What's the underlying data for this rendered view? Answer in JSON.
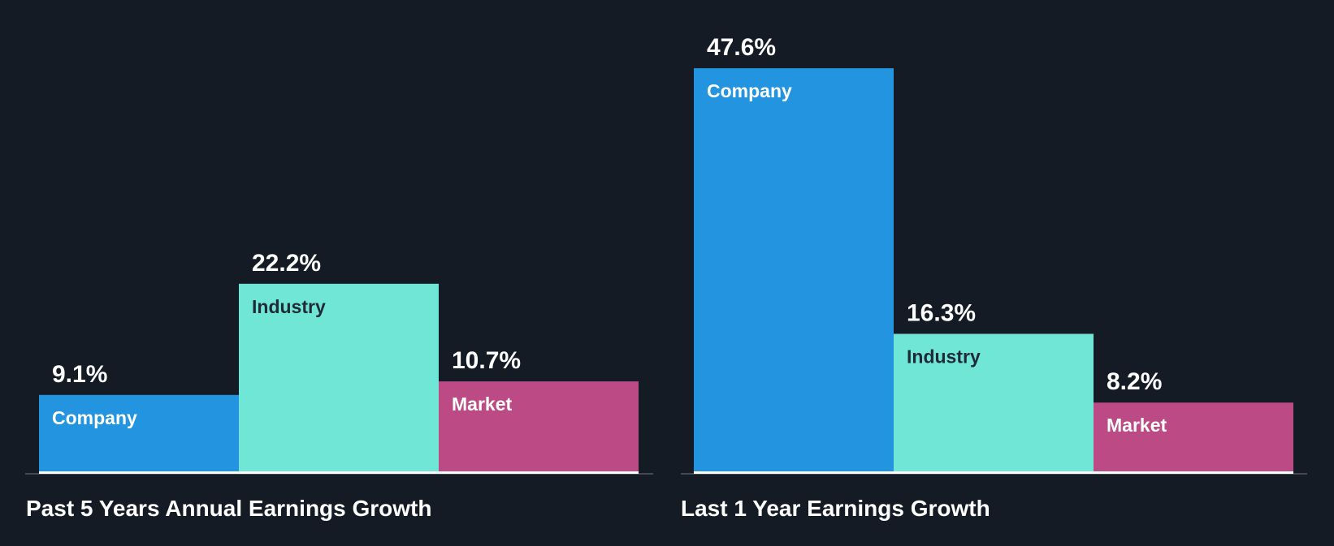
{
  "colors": {
    "background": "#151b24",
    "company": "#2394df",
    "industry": "#70e7d6",
    "market": "#bb4a85",
    "axis": "#444a52",
    "baseline": "#ffffff",
    "text_light": "#ffffff",
    "text_dark": "#1f2a36"
  },
  "chart_data": [
    {
      "type": "bar",
      "title": "Past 5 Years Annual Earnings Growth",
      "categories": [
        "Company",
        "Industry",
        "Market"
      ],
      "values": [
        9.1,
        22.2,
        10.7
      ],
      "value_labels": [
        "9.1%",
        "22.2%",
        "10.7%"
      ],
      "unit": "%",
      "ylim": [
        0,
        47.6
      ],
      "grid": false,
      "legend": "none"
    },
    {
      "type": "bar",
      "title": "Last 1 Year Earnings Growth",
      "categories": [
        "Company",
        "Industry",
        "Market"
      ],
      "values": [
        47.6,
        16.3,
        8.2
      ],
      "value_labels": [
        "47.6%",
        "16.3%",
        "8.2%"
      ],
      "unit": "%",
      "ylim": [
        0,
        47.6
      ],
      "grid": false,
      "legend": "none"
    }
  ]
}
